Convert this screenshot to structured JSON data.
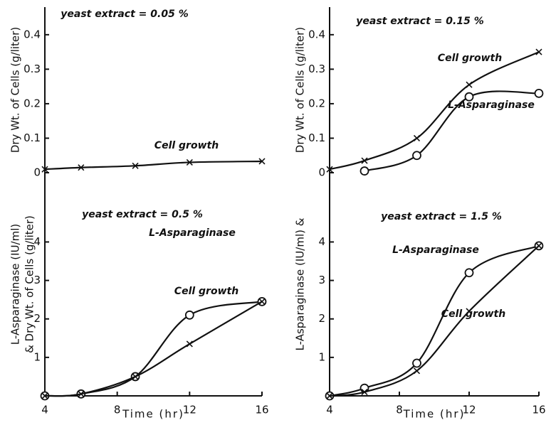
{
  "chart_data": [
    {
      "type": "line",
      "subtitle": "yeast extract = 0.05 %",
      "ylabel": [
        "Dry Wt. of Cells (g/liter)"
      ],
      "xlim": [
        4,
        16
      ],
      "ylim": [
        0,
        0.48
      ],
      "yticks": [
        0,
        0.1,
        0.2,
        0.3,
        0.4
      ],
      "x": [
        4,
        6,
        9,
        12,
        16
      ],
      "series": [
        {
          "name": "Cell growth",
          "marker": "x",
          "color": "#111111",
          "values": [
            0.01,
            0.015,
            0.02,
            0.03,
            0.033
          ]
        }
      ]
    },
    {
      "type": "line",
      "subtitle": "yeast extract = 0.15 %",
      "ylabel": [
        "Dry Wt. of Cells (g/liter)"
      ],
      "xlim": [
        4,
        16
      ],
      "ylim": [
        0,
        0.48
      ],
      "yticks": [
        0,
        0.1,
        0.2,
        0.3,
        0.4
      ],
      "x": [
        4,
        6,
        9,
        12,
        16
      ],
      "series": [
        {
          "name": "Cell growth",
          "marker": "x",
          "color": "#111111",
          "values": [
            0.01,
            0.035,
            0.1,
            0.255,
            0.35
          ]
        },
        {
          "name": "L-Asparaginase",
          "marker": "o",
          "color": "#111111",
          "values": [
            null,
            0.005,
            0.05,
            0.22,
            0.23
          ]
        }
      ]
    },
    {
      "type": "line",
      "subtitle": "yeast extract = 0.5 %",
      "ylabel": [
        "L-Asparaginase (IU/ml)",
        "& Dry Wt. of Cells (g/liter)"
      ],
      "xlabel": "Time (hr)",
      "xlim": [
        4,
        16
      ],
      "xticks": [
        4,
        8,
        12,
        16
      ],
      "ylim": [
        0,
        5.8
      ],
      "yticks": [
        1,
        2,
        3,
        4
      ],
      "x": [
        4,
        6,
        9,
        12,
        16
      ],
      "series": [
        {
          "name": "L-Asparaginase",
          "marker": "o",
          "color": "#111111",
          "values": [
            0,
            0.05,
            0.5,
            2.1,
            2.45
          ]
        },
        {
          "name": "Cell growth",
          "marker": "x",
          "color": "#111111",
          "values": [
            0,
            0.05,
            0.5,
            1.35,
            2.45
          ]
        }
      ]
    },
    {
      "type": "line",
      "subtitle": "yeast extract = 1.5 %",
      "ylabel": [
        "L-Asparaginase (IU/ml) &"
      ],
      "xlabel": "Time (hr)",
      "xlim": [
        4,
        16
      ],
      "xticks": [
        4,
        8,
        12,
        16
      ],
      "ylim": [
        0,
        5.8
      ],
      "yticks": [
        1,
        2,
        3,
        4
      ],
      "x": [
        4,
        6,
        9,
        12,
        16
      ],
      "series": [
        {
          "name": "L-Asparaginase",
          "marker": "o",
          "color": "#111111",
          "values": [
            0,
            0.2,
            0.85,
            3.2,
            3.9
          ]
        },
        {
          "name": "Cell growth",
          "marker": "x",
          "color": "#111111",
          "values": [
            0,
            0.1,
            0.65,
            2.2,
            3.9
          ]
        }
      ]
    }
  ]
}
